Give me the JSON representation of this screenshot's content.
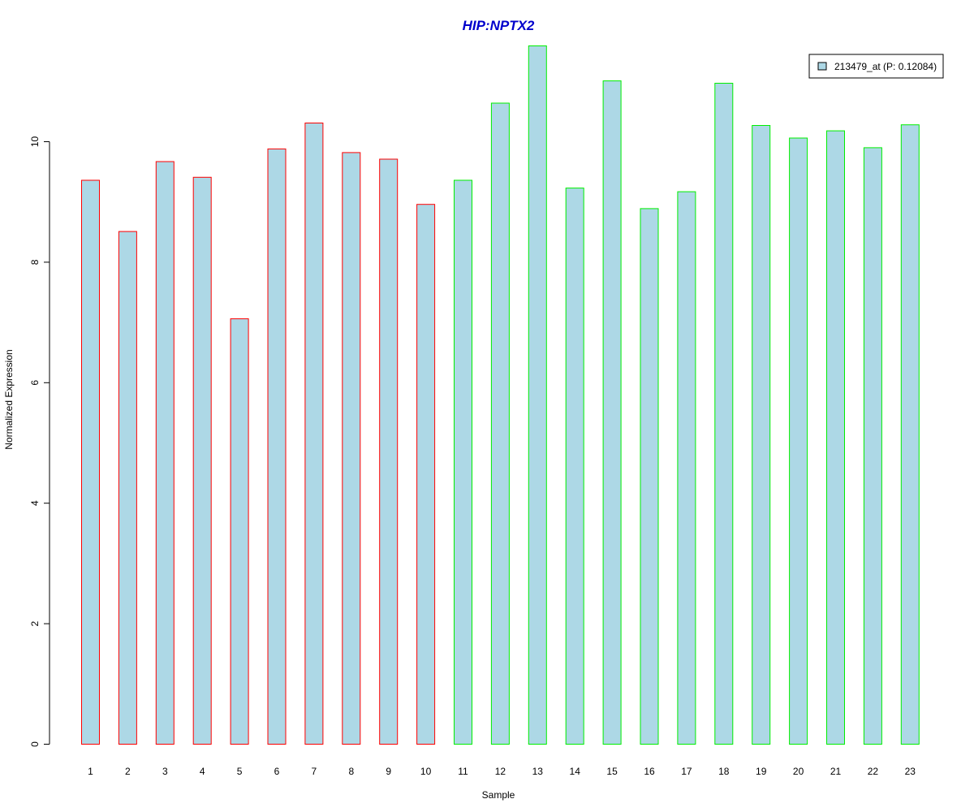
{
  "colors": {
    "title": "#0000cc",
    "bar_fill": "#add8e6",
    "group1_border": "#ff0000",
    "group2_border": "#00ee00",
    "axis": "#000000"
  },
  "chart_data": {
    "type": "bar",
    "title": "HIP:NPTX2",
    "xlabel": "Sample",
    "ylabel": "Normalized Expression",
    "ylim": [
      0,
      11.6
    ],
    "yticks": [
      0,
      2,
      4,
      6,
      8,
      10
    ],
    "grid": false,
    "legend_position": "top-right",
    "legend": [
      {
        "label": "213479_at (P: 0.12084)",
        "fill": "#add8e6"
      }
    ],
    "categories": [
      "1",
      "2",
      "3",
      "4",
      "5",
      "6",
      "7",
      "8",
      "9",
      "10",
      "11",
      "12",
      "13",
      "14",
      "15",
      "16",
      "17",
      "18",
      "19",
      "20",
      "21",
      "22",
      "23"
    ],
    "series": [
      {
        "name": "213479_at (P: 0.12084)",
        "values": [
          9.36,
          8.51,
          9.67,
          9.41,
          7.06,
          9.88,
          10.31,
          9.82,
          9.71,
          8.96,
          9.36,
          10.64,
          11.59,
          9.23,
          11.01,
          8.89,
          9.17,
          10.97,
          10.27,
          10.06,
          10.18,
          9.9,
          10.28
        ]
      }
    ],
    "groups": [
      {
        "border": "#ff0000",
        "start": 0,
        "end": 9
      },
      {
        "border": "#00ee00",
        "start": 10,
        "end": 22
      }
    ]
  }
}
